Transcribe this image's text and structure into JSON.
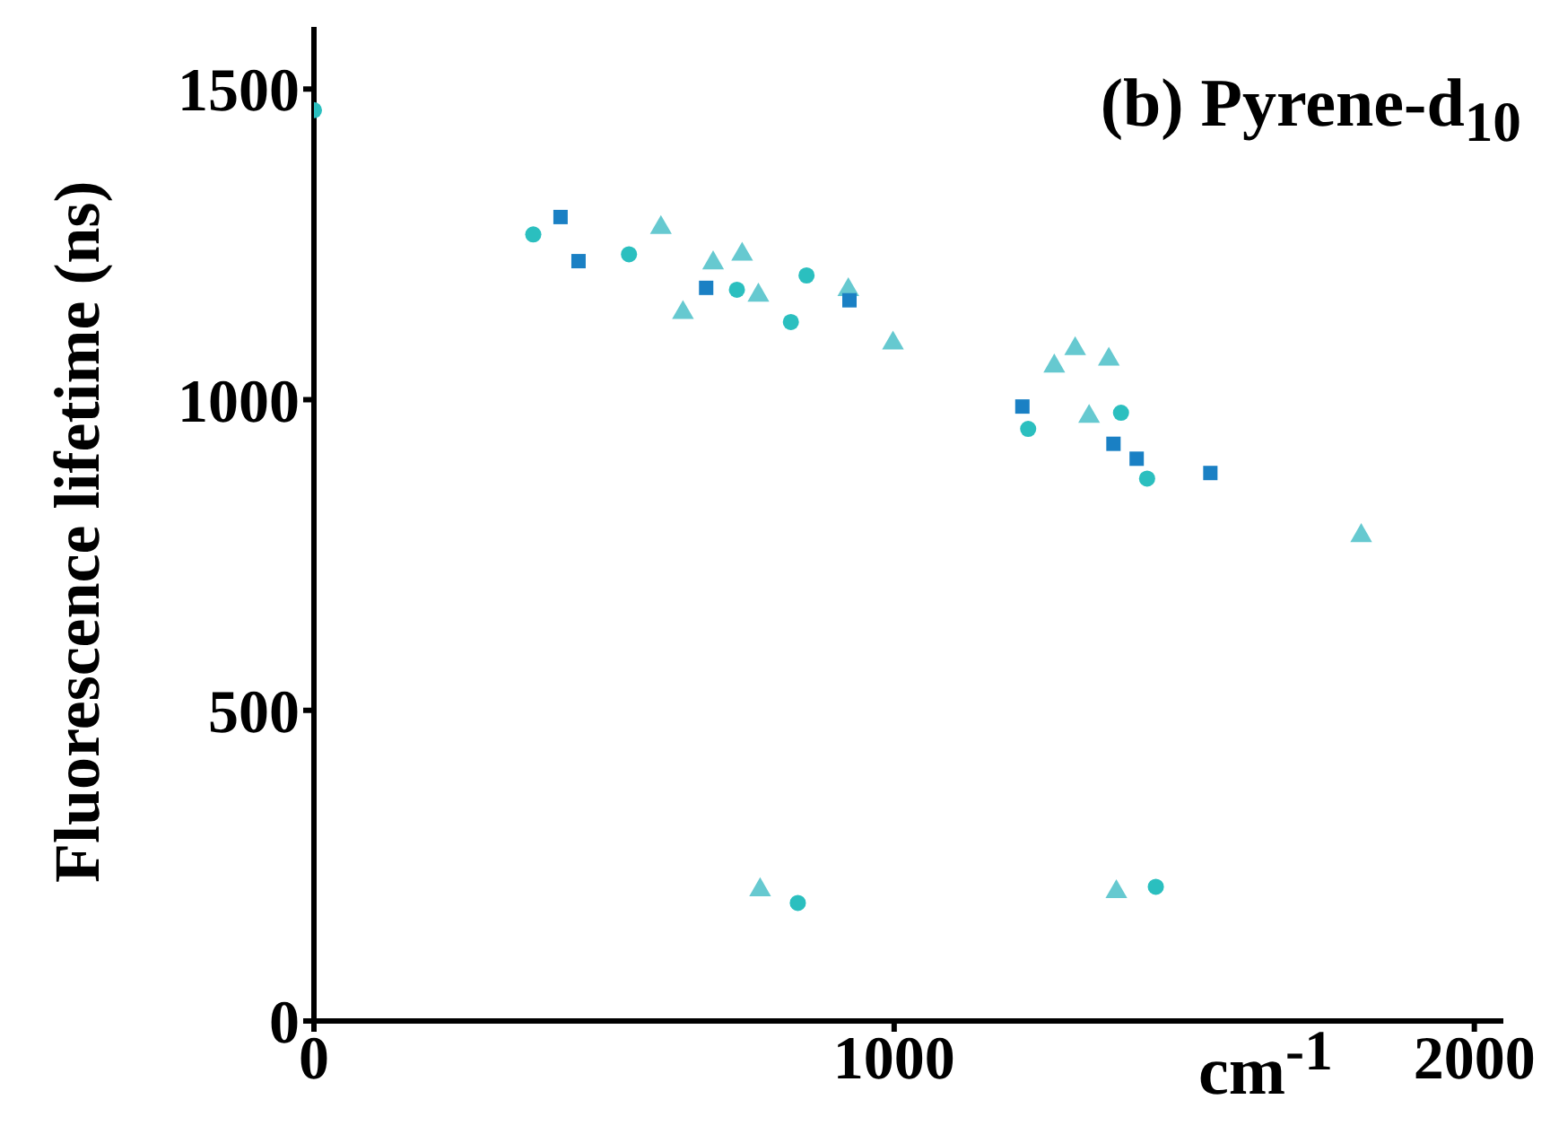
{
  "chart_data": {
    "type": "scatter",
    "title": "(b) Pyrene-d$_{10}$",
    "xlabel": "cm$^{-1}$",
    "ylabel": "Fluorescence lifetime (ns)",
    "xlim": [
      0,
      2050
    ],
    "ylim": [
      0,
      1600
    ],
    "xticks": [
      0,
      1000,
      2000
    ],
    "yticks": [
      0,
      500,
      1000,
      1500
    ],
    "grid": false,
    "legend": false,
    "series": [
      {
        "color": "#2bbfbf",
        "marker": "circle",
        "x": [
          0,
          378,
          543,
          729,
          849,
          822,
          1231,
          1391,
          1436,
          834,
          1451
        ],
        "values": [
          1466,
          1266,
          1234,
          1177,
          1200,
          1125,
          953,
          979,
          873,
          190,
          216
        ]
      },
      {
        "color": "#66c9d0",
        "marker": "triangle",
        "x": [
          598,
          688,
          738,
          766,
          636,
          921,
          998,
          1276,
          1312,
          1370,
          1336,
          1805,
          769,
          1383
        ],
        "values": [
          1277,
          1220,
          1234,
          1168,
          1140,
          1177,
          1091,
          1054,
          1082,
          1065,
          973,
          781,
          211,
          208
        ]
      },
      {
        "color": "#1a80c4",
        "marker": "square",
        "x": [
          425,
          456,
          676,
          923,
          1221,
          1378,
          1418,
          1545
        ],
        "values": [
          1294,
          1223,
          1180,
          1160,
          989,
          929,
          905,
          882
        ]
      }
    ]
  }
}
